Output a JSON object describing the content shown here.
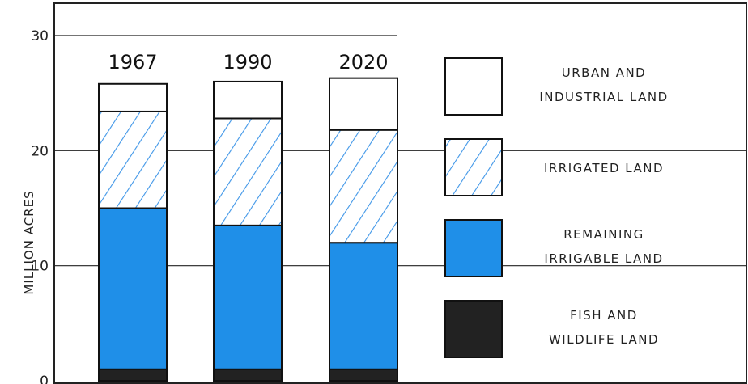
{
  "chart_data": {
    "type": "bar",
    "stacked": true,
    "categories": [
      "1967",
      "1990",
      "2020"
    ],
    "series": [
      {
        "name": "FISH AND WILDLIFE LAND",
        "color": "#222222",
        "pattern": "solid",
        "values": [
          1,
          1,
          1
        ]
      },
      {
        "name": "REMAINING IRRIGABLE LAND",
        "color": "#1f8fe8",
        "pattern": "solid",
        "values": [
          14,
          12.5,
          11
        ]
      },
      {
        "name": "IRRIGATED LAND",
        "color": "#3f96e8",
        "pattern": "hatched",
        "values": [
          8.4,
          9.3,
          9.8
        ]
      },
      {
        "name": "URBAN AND INDUSTRIAL LAND",
        "color": "#ffffff",
        "pattern": "outline",
        "values": [
          2.4,
          3.2,
          4.5
        ]
      }
    ],
    "legend": [
      {
        "key": "urban",
        "lines": [
          "URBAN AND",
          "INDUSTRIAL LAND"
        ]
      },
      {
        "key": "irrigated",
        "lines": [
          "IRRIGATED LAND"
        ]
      },
      {
        "key": "remaining",
        "lines": [
          "REMAINING",
          "IRRIGABLE LAND"
        ]
      },
      {
        "key": "fish",
        "lines": [
          "FISH AND",
          "WILDLIFE LAND"
        ]
      }
    ],
    "legend_position": "right",
    "ylabel": "MILLION ACRES",
    "yticks": [
      0,
      10,
      20,
      30
    ],
    "ylim": [
      0,
      30
    ],
    "grid": true
  }
}
